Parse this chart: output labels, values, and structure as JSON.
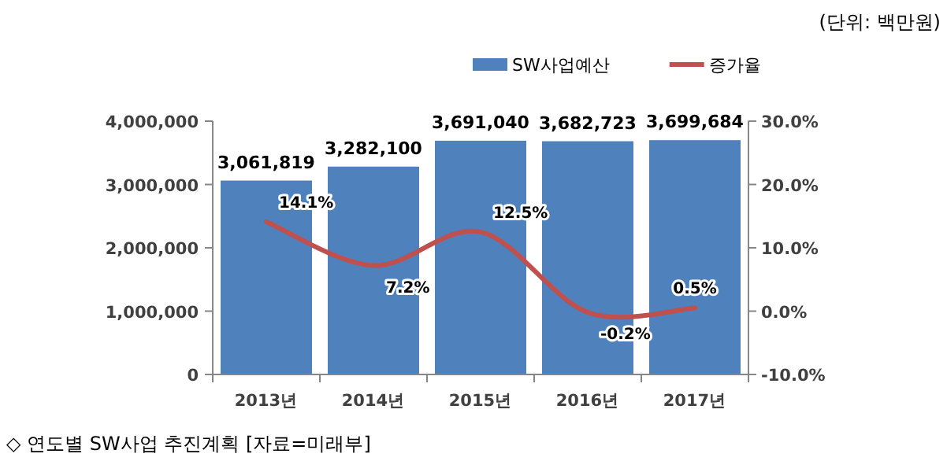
{
  "chart_data": {
    "type": "bar",
    "categories": [
      "2013년",
      "2014년",
      "2015년",
      "2016년",
      "2017년"
    ],
    "series": [
      {
        "name": "SW사업예산",
        "type": "bar",
        "color": "#4f81bd",
        "values": [
          3061819,
          3282100,
          3691040,
          3682723,
          3699684
        ],
        "value_labels": [
          "3,061,819",
          "3,282,100",
          "3,691,040",
          "3,682,723",
          "3,699,684"
        ]
      },
      {
        "name": "증가율",
        "type": "line",
        "axis": "y2",
        "color": "#c0504d",
        "values": [
          14.1,
          7.2,
          12.5,
          -0.2,
          0.5
        ],
        "value_labels": [
          "14.1%",
          "7.2%",
          "12.5%",
          "-0.2%",
          "0.5%"
        ]
      }
    ],
    "ylim": [
      0,
      4000000
    ],
    "yticks": [
      {
        "value": 0,
        "label": "0"
      },
      {
        "value": 1000000,
        "label": "1,000,000"
      },
      {
        "value": 2000000,
        "label": "2,000,000"
      },
      {
        "value": 3000000,
        "label": "3,000,000"
      },
      {
        "value": 4000000,
        "label": "4,000,000"
      }
    ],
    "y2lim": [
      -10,
      30
    ],
    "y2ticks": [
      {
        "value": -10,
        "label": "-10.0%"
      },
      {
        "value": 0,
        "label": "0.0%"
      },
      {
        "value": 10,
        "label": "10.0%"
      },
      {
        "value": 20,
        "label": "20.0%"
      },
      {
        "value": 30,
        "label": "30.0%"
      }
    ],
    "legend": "top",
    "annotations": [
      "(단위: 백만원)",
      "◇ 연도별 SW사업 추진계획 [자료=미래부]"
    ]
  }
}
